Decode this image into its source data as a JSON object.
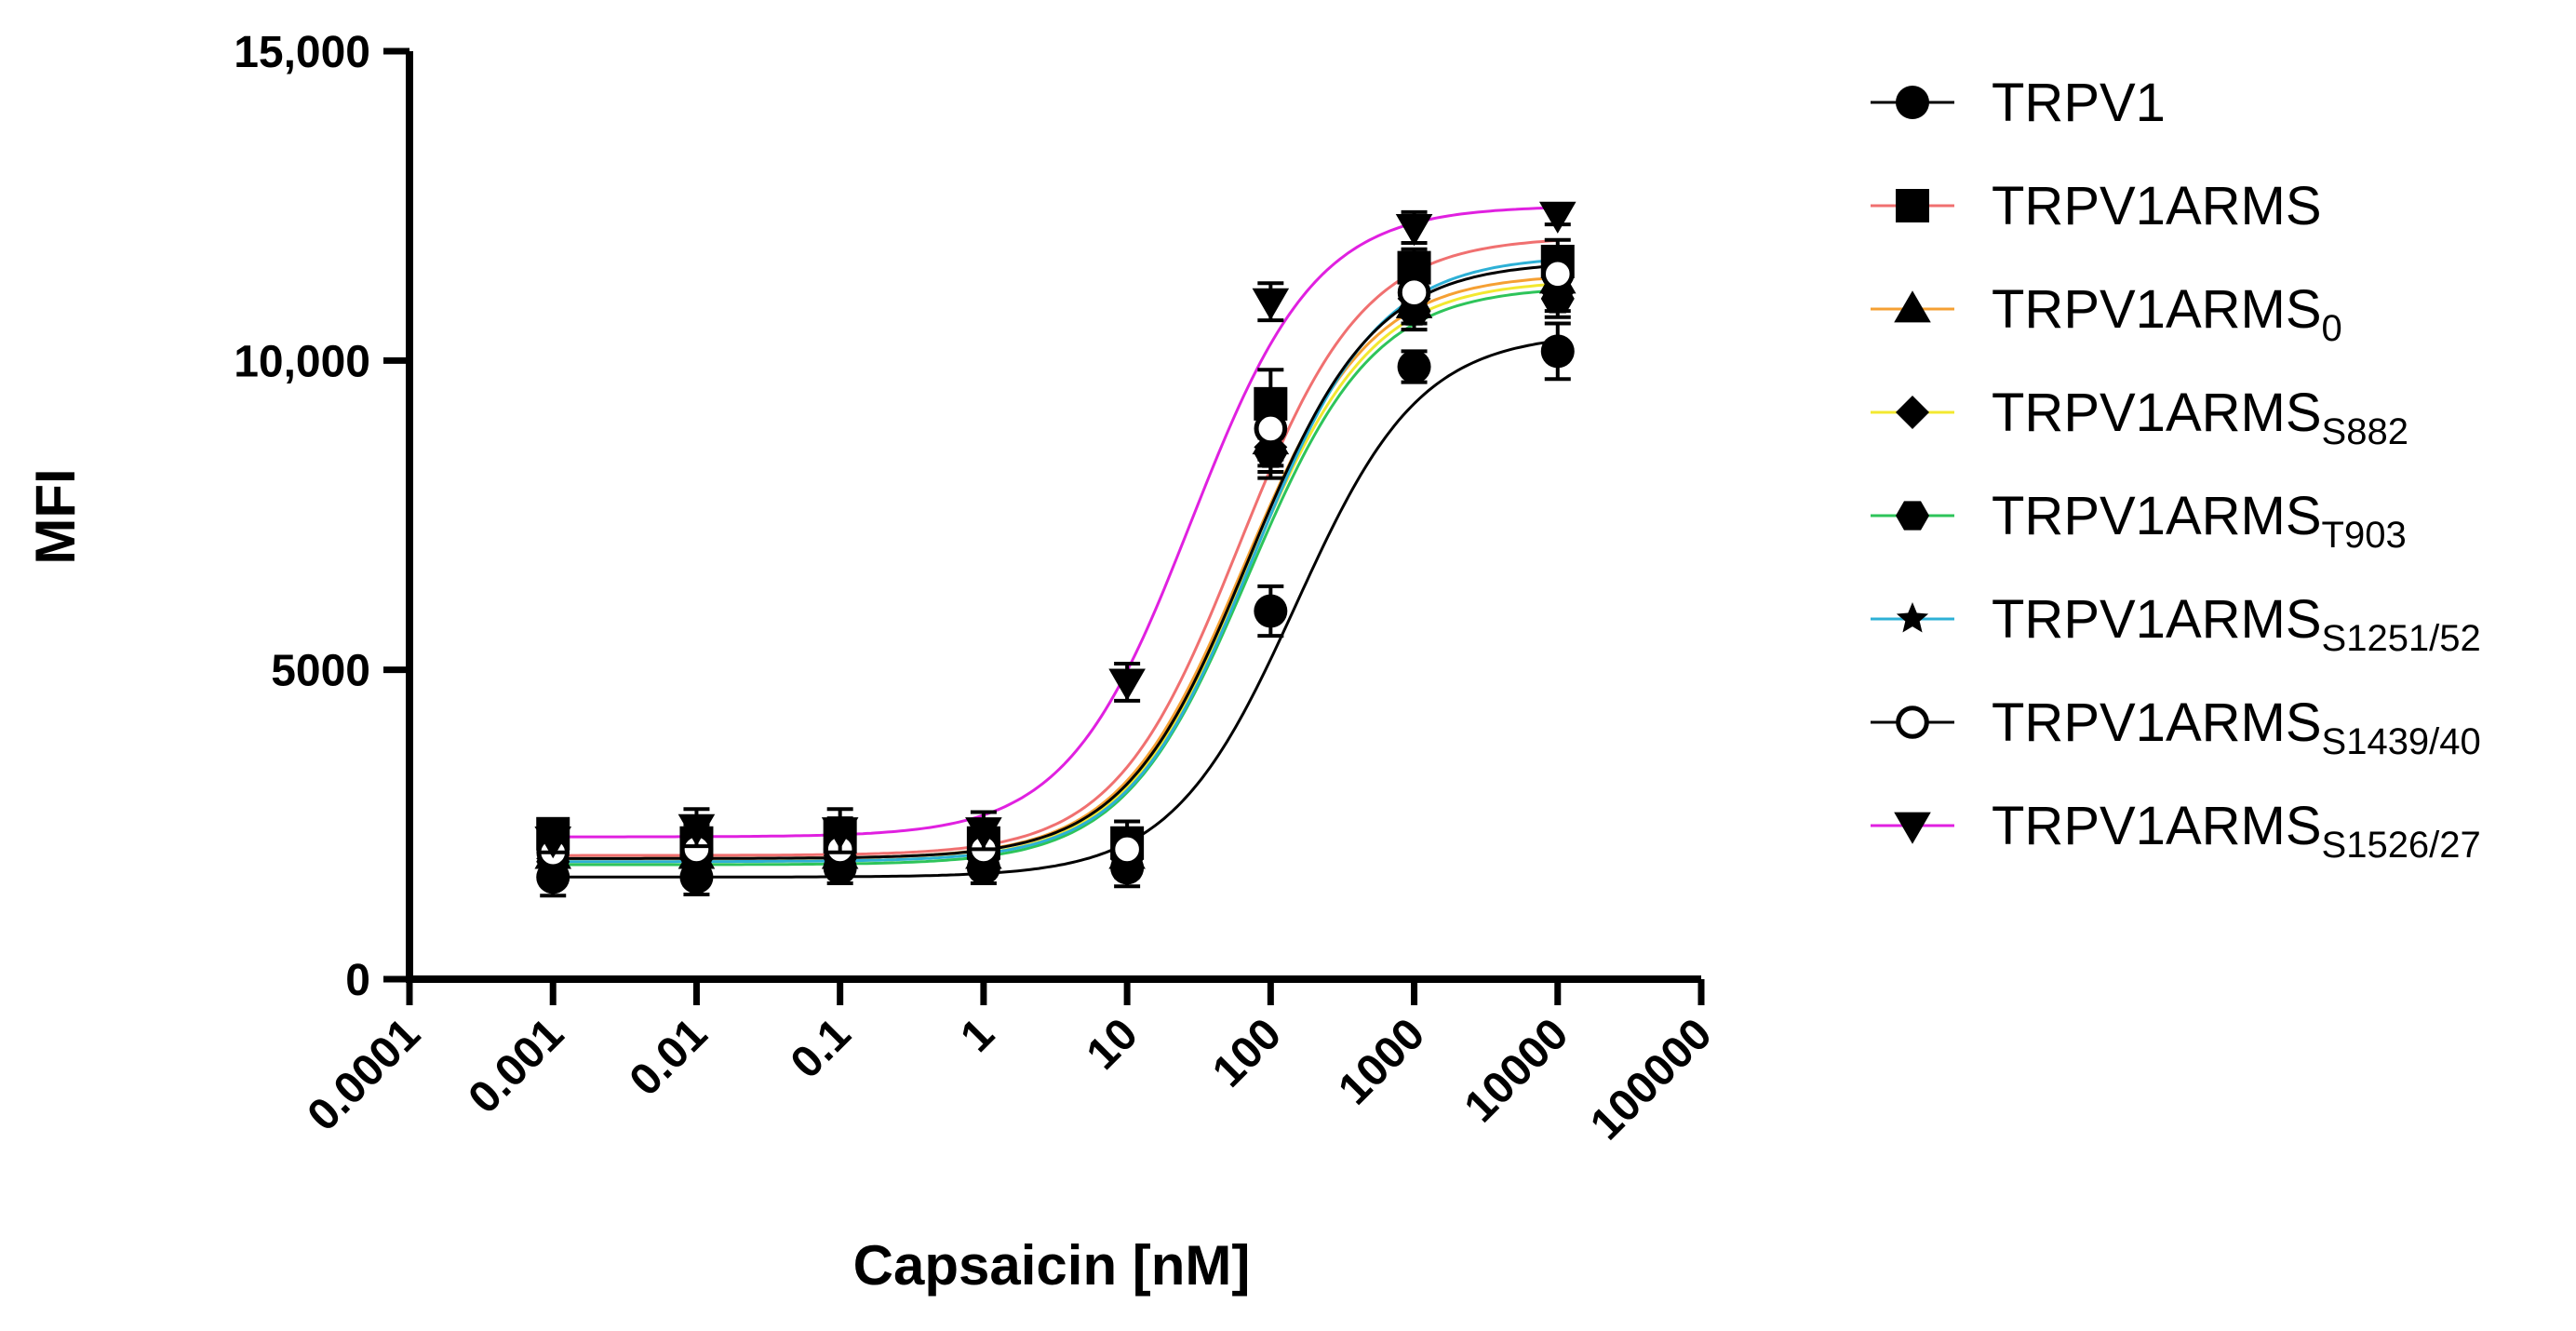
{
  "chart_data": {
    "type": "scatter",
    "subtype": "dose-response (sigmoidal fit, log x-axis)",
    "xlabel": "Capsaicin [nM]",
    "ylabel": "MFI",
    "xscale": "log",
    "xlim": [
      0.0001,
      100000
    ],
    "ylim": [
      0,
      15000
    ],
    "xticks": [
      0.0001,
      0.001,
      0.01,
      0.1,
      1,
      10,
      100,
      1000,
      10000,
      100000
    ],
    "xtick_labels": [
      "0.0001",
      "0.001",
      "0.01",
      "0.1",
      "1",
      "10",
      "100",
      "1000",
      "10000",
      "100000"
    ],
    "yticks": [
      0,
      5000,
      10000,
      15000
    ],
    "ytick_labels": [
      "0",
      "5000",
      "10,000",
      "15,000"
    ],
    "x": [
      0.001,
      0.01,
      0.1,
      1,
      10,
      100,
      1000,
      10000
    ],
    "legend_position": "right",
    "series": [
      {
        "name": "TRPV1",
        "sub": "",
        "color": "#000000",
        "marker": "circle",
        "values": [
          1650,
          1650,
          1800,
          1800,
          1800,
          5950,
          9900,
          10150
        ],
        "errors": [
          300,
          280,
          250,
          250,
          300,
          400,
          250,
          450
        ],
        "fit": {
          "bottom": 1650,
          "top": 10450,
          "ec50": 150,
          "hill": 1.0
        }
      },
      {
        "name": "TRPV1ARMS",
        "sub": "",
        "color": "#f07070",
        "marker": "square",
        "values": [
          2350,
          2200,
          2300,
          2200,
          2200,
          9300,
          11500,
          11600
        ],
        "errors": [
          200,
          300,
          300,
          300,
          350,
          550,
          300,
          350
        ],
        "fit": {
          "bottom": 2000,
          "top": 12000,
          "ec50": 60,
          "hill": 1.0
        }
      },
      {
        "name": "TRPV1ARMS",
        "sub": "0",
        "color": "#f5a033",
        "marker": "triangle",
        "values": [
          2000,
          2000,
          2000,
          2000,
          2000,
          8700,
          10900,
          11300
        ],
        "errors": [
          250,
          250,
          250,
          250,
          300,
          400,
          300,
          300
        ],
        "fit": {
          "bottom": 1950,
          "top": 11400,
          "ec50": 65,
          "hill": 1.0
        }
      },
      {
        "name": "TRPV1ARMS",
        "sub": "S882",
        "color": "#f3e830",
        "marker": "diamond",
        "values": [
          1950,
          1950,
          2000,
          2000,
          2000,
          8600,
          11000,
          11100
        ],
        "errors": [
          250,
          250,
          250,
          250,
          300,
          400,
          300,
          300
        ],
        "fit": {
          "bottom": 1900,
          "top": 11300,
          "ec50": 68,
          "hill": 1.0
        }
      },
      {
        "name": "TRPV1ARMS",
        "sub": "T903",
        "color": "#2ec45a",
        "marker": "hexagon",
        "values": [
          1900,
          1950,
          1950,
          1950,
          1950,
          8500,
          10800,
          11000
        ],
        "errors": [
          250,
          250,
          250,
          250,
          300,
          400,
          300,
          300
        ],
        "fit": {
          "bottom": 1850,
          "top": 11200,
          "ec50": 70,
          "hill": 1.0
        }
      },
      {
        "name": "TRPV1ARMS",
        "sub": "S1251/52",
        "color": "#2db0d6",
        "marker": "star",
        "values": [
          2000,
          2000,
          2000,
          2050,
          2050,
          8800,
          11200,
          11500
        ],
        "errors": [
          250,
          250,
          250,
          250,
          300,
          400,
          300,
          300
        ],
        "fit": {
          "bottom": 1900,
          "top": 11700,
          "ec50": 75,
          "hill": 1.0
        }
      },
      {
        "name": "TRPV1ARMS",
        "sub": "S1439/40",
        "color": "#000000",
        "marker": "circle-open",
        "values": [
          2050,
          2100,
          2100,
          2100,
          2100,
          8900,
          11100,
          11400
        ],
        "errors": [
          250,
          250,
          250,
          250,
          300,
          400,
          300,
          300
        ],
        "fit": {
          "bottom": 1950,
          "top": 11600,
          "ec50": 70,
          "hill": 1.0
        }
      },
      {
        "name": "TRPV1ARMS",
        "sub": "S1526/27",
        "color": "#e020e0",
        "marker": "triangle-down",
        "values": [
          2250,
          2450,
          2400,
          2400,
          4800,
          10950,
          12150,
          12350
        ],
        "errors": [
          200,
          300,
          350,
          300,
          300,
          300,
          250,
          150
        ],
        "fit": {
          "bottom": 2300,
          "top": 12500,
          "ec50": 28,
          "hill": 1.0
        }
      }
    ]
  }
}
